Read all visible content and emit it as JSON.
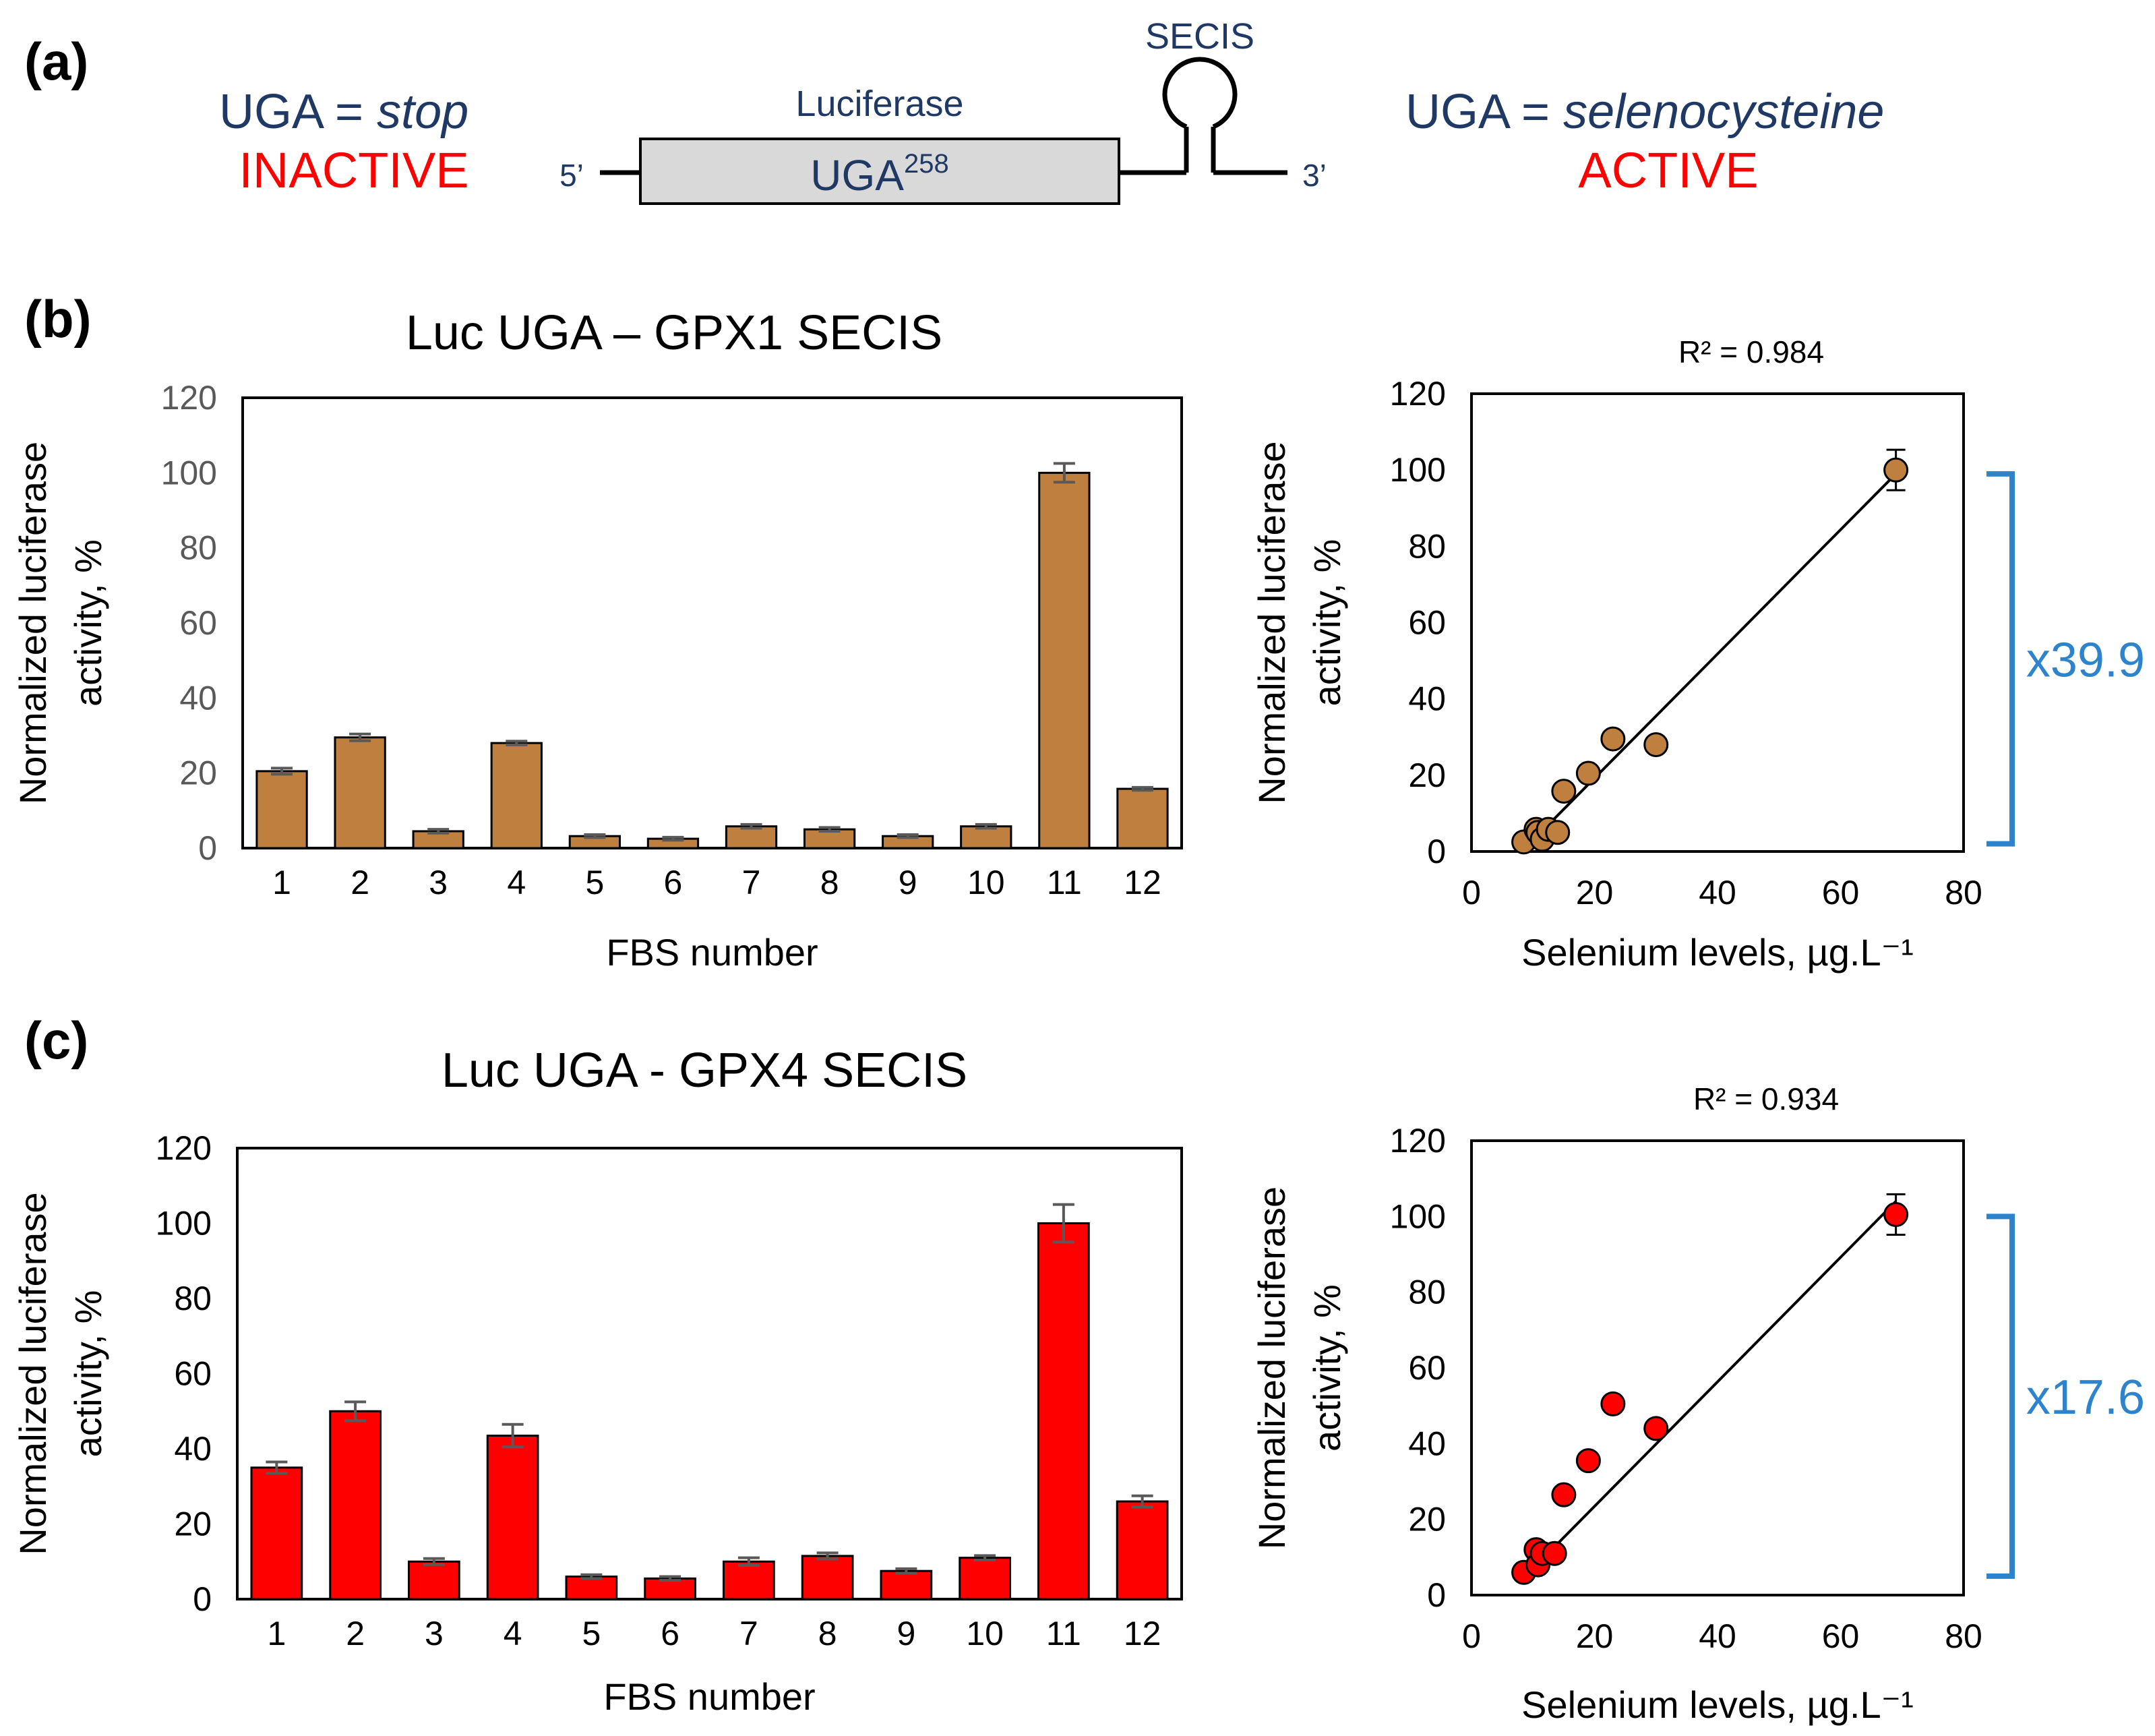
{
  "panel_labels": {
    "a": "(a)",
    "b": "(b)",
    "c": "(c)"
  },
  "panel_a": {
    "left_prefix": "UGA = ",
    "left_italic": "stop",
    "left_status": "INACTIVE",
    "gene_label": "Luciferase",
    "codon_text": "UGA",
    "codon_sup": "258",
    "five_prime": "5’",
    "three_prime": "3’",
    "secis_label": "SECIS",
    "right_prefix": "UGA = ",
    "right_italic": "selenocysteine",
    "right_status": "ACTIVE",
    "colors": {
      "navy": "#1f3864",
      "red": "#ff0000",
      "box_fill": "#d9d9d9"
    }
  },
  "chart_data": [
    {
      "id": "b-bar",
      "type": "bar",
      "title": "Luc UGA – GPX1 SECIS",
      "xlabel": "FBS number",
      "ylabel_lines": [
        "Normalized luciferase",
        "activity, %"
      ],
      "categories": [
        "1",
        "2",
        "3",
        "4",
        "5",
        "6",
        "7",
        "8",
        "9",
        "10",
        "11",
        "12"
      ],
      "values": [
        20.5,
        29.5,
        4.5,
        28,
        3.2,
        2.5,
        5.8,
        5,
        3.2,
        5.8,
        100,
        15.8
      ],
      "errors": [
        0.8,
        0.9,
        0.5,
        0.5,
        0.4,
        0.4,
        0.5,
        0.5,
        0.4,
        0.5,
        2.5,
        0.4
      ],
      "ylim": [
        0,
        120
      ],
      "yticks": [
        "0",
        "20",
        "40",
        "60",
        "80",
        "100",
        "120"
      ],
      "bar_color": "#bf7f3f"
    },
    {
      "id": "b-scatter",
      "type": "scatter",
      "title": "R² = 0.984",
      "xlabel": "Selenium levels, µg.L⁻¹",
      "ylabel_lines": [
        "Normalized luciferase",
        "activity, %"
      ],
      "x": [
        8.5,
        10.5,
        10.8,
        11.5,
        12.5,
        14,
        15,
        19,
        23,
        30,
        69
      ],
      "y": [
        2.5,
        5.8,
        5,
        3.2,
        5.8,
        5,
        15.8,
        20.5,
        29.5,
        28,
        100
      ],
      "fit_line": {
        "x": [
          8.5,
          69
        ],
        "y": [
          0.5,
          99
        ]
      },
      "xlim": [
        0,
        80
      ],
      "ylim": [
        0,
        120
      ],
      "xticks": [
        "0",
        "20",
        "40",
        "60",
        "80"
      ],
      "yticks": [
        "0",
        "20",
        "40",
        "60",
        "80",
        "100",
        "120"
      ],
      "marker_color": "#bf7f3f",
      "fold_change": "x39.9",
      "bracket_range": [
        2,
        99
      ],
      "bracket_color": "#2e84cc"
    },
    {
      "id": "c-bar",
      "type": "bar",
      "title": "Luc UGA - GPX4 SECIS",
      "xlabel": "FBS number",
      "ylabel_lines": [
        "Normalized luciferase",
        "activity, %"
      ],
      "categories": [
        "1",
        "2",
        "3",
        "4",
        "5",
        "6",
        "7",
        "8",
        "9",
        "10",
        "11",
        "12"
      ],
      "values": [
        35,
        50,
        10,
        43.5,
        6,
        5.5,
        10,
        11.5,
        7.5,
        11,
        100,
        26
      ],
      "errors": [
        1.5,
        2.5,
        0.8,
        3,
        0.5,
        0.5,
        1,
        0.8,
        0.6,
        0.6,
        5,
        1.5
      ],
      "ylim": [
        0,
        120
      ],
      "yticks": [
        "0",
        "20",
        "40",
        "60",
        "80",
        "100",
        "120"
      ],
      "bar_color": "#ff0000"
    },
    {
      "id": "c-scatter",
      "type": "scatter",
      "title": "R² = 0.934",
      "xlabel": "Selenium levels, µg.L⁻¹",
      "ylabel_lines": [
        "Normalized luciferase",
        "activity, %"
      ],
      "x": [
        8.5,
        10.5,
        10.8,
        11.5,
        13.5,
        15,
        19,
        23,
        30,
        69
      ],
      "y": [
        6,
        12,
        8,
        11,
        11,
        26.5,
        35.5,
        50.5,
        44,
        100.5
      ],
      "fit_line": {
        "x": [
          10,
          69
        ],
        "y": [
          7,
          104
        ]
      },
      "xlim": [
        0,
        80
      ],
      "ylim": [
        0,
        120
      ],
      "xticks": [
        "0",
        "20",
        "40",
        "60",
        "80"
      ],
      "yticks": [
        "0",
        "20",
        "40",
        "60",
        "80",
        "100",
        "120"
      ],
      "marker_color": "#ff0000",
      "fold_change": "x17.6",
      "bracket_range": [
        5,
        100
      ],
      "bracket_color": "#2e84cc"
    }
  ]
}
